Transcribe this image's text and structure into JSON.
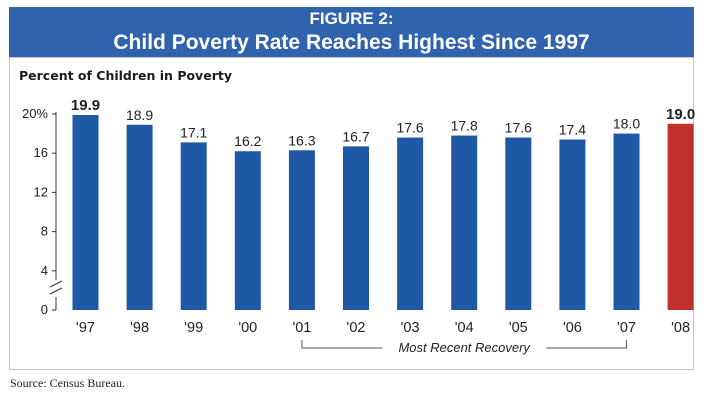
{
  "header": {
    "figure_label": "FIGURE 2:",
    "title": "Child Poverty Rate Reaches Highest Since 1997"
  },
  "ylabel": "Percent of Children in Poverty",
  "source": "Source: Census Bureau.",
  "chart_data": {
    "type": "bar",
    "title": "Child Poverty Rate Reaches Highest Since 1997",
    "ylabel": "Percent of Children in Poverty",
    "categories": [
      "'97",
      "'98",
      "'99",
      "'00",
      "'01",
      "'02",
      "'03",
      "'04",
      "'05",
      "'06",
      "'07",
      "'08"
    ],
    "values": [
      19.9,
      18.9,
      17.1,
      16.2,
      16.3,
      16.7,
      17.6,
      17.8,
      17.6,
      17.4,
      18.0,
      19.0
    ],
    "value_labels": [
      "19.9",
      "18.9",
      "17.1",
      "16.2",
      "16.3",
      "16.7",
      "17.6",
      "17.8",
      "17.6",
      "17.4",
      "18.0",
      "19.0"
    ],
    "bold_labels": [
      "'97",
      "'08"
    ],
    "ylim": [
      0,
      20
    ],
    "yticks": [
      {
        "value": 20,
        "label": "20%"
      },
      {
        "value": 16,
        "label": "16"
      },
      {
        "value": 12,
        "label": "12"
      },
      {
        "value": 8,
        "label": "8"
      },
      {
        "value": 4,
        "label": "4"
      },
      {
        "value": 0,
        "label": "0"
      }
    ],
    "bar_color": "#1f59a6",
    "highlight_color": "#c0302d",
    "highlight_category": "'08",
    "axis_break": true,
    "annotation": {
      "text": "Most Recent Recovery",
      "from_category": "'01",
      "to_category": "'07"
    }
  }
}
